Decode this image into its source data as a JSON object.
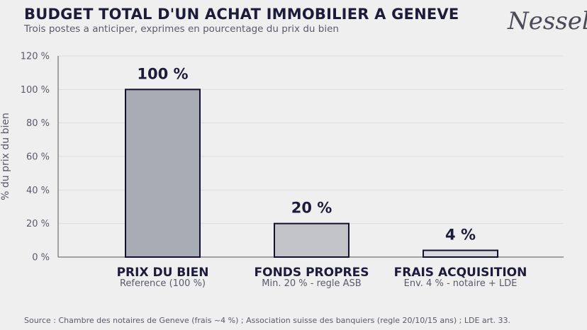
{
  "header": {
    "title": "BUDGET TOTAL D'UN ACHAT IMMOBILIER A GENEVE",
    "subtitle": "Trois postes a anticiper, exprimes en pourcentage du prix du bien",
    "logo": "Nessell"
  },
  "footer": {
    "source": "Source : Chambre des notaires de Geneve (frais ~4 %) ; Association suisse des banquiers (regle 20/10/15 ans) ; LDE art. 33."
  },
  "chart_data": {
    "type": "bar",
    "categories": [
      "PRIX DU BIEN",
      "FONDS PROPRES",
      "FRAIS ACQUISITION"
    ],
    "category_notes": [
      "Reference (100 %)",
      "Min. 20 % - regle ASB",
      "Env. 4 % - notaire + LDE"
    ],
    "values": [
      100,
      20,
      4
    ],
    "data_labels": [
      "100 %",
      "20 %",
      "4 %"
    ],
    "ylabel": "% du prix du bien",
    "ylim": [
      0,
      120
    ],
    "yticks": [
      0,
      20,
      40,
      60,
      80,
      100,
      120
    ],
    "ytick_labels": [
      "0 %",
      "20 %",
      "40 %",
      "60 %",
      "80 %",
      "100 %",
      "120 %"
    ],
    "bar_colors": [
      "#a7acb5",
      "#c1c3c9",
      "#d9dade"
    ],
    "bar_edge_color": "#14112e",
    "grid": true,
    "legend": "none"
  }
}
